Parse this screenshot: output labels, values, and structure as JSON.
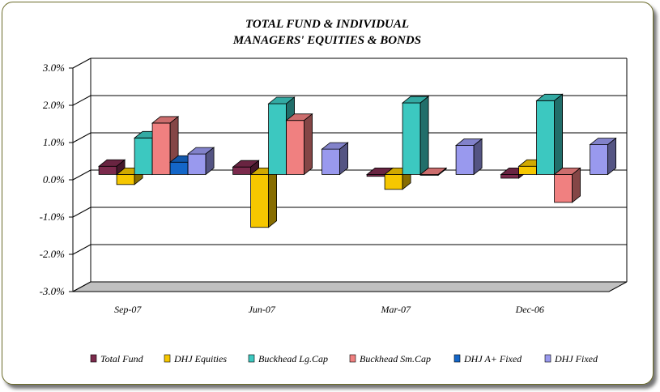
{
  "chart_data": {
    "type": "bar",
    "title_lines": [
      "TOTAL FUND  & INDIVIDUAL",
      "MANAGERS' EQUITIES & BONDS"
    ],
    "categories": [
      "Sep-07",
      "Jun-07",
      "Mar-07",
      "Dec-06"
    ],
    "ylim": [
      -3.0,
      3.0
    ],
    "yticks": [
      -3.0,
      -2.0,
      -1.0,
      0.0,
      1.0,
      2.0,
      3.0
    ],
    "ytick_labels": [
      "-3.0%",
      "-2.0%",
      "-1.0%",
      "0.0%",
      "1.0%",
      "2.0%",
      "3.0%"
    ],
    "grid": true,
    "legend_position": "bottom",
    "series": [
      {
        "name": "Total Fund",
        "color": "#7b2a4c",
        "values": [
          0.22,
          0.2,
          -0.05,
          -0.1
        ]
      },
      {
        "name": "DHJ Equities",
        "color": "#f6c700",
        "values": [
          -0.27,
          -1.42,
          -0.4,
          0.22
        ]
      },
      {
        "name": "Buckhead Lg.Cap",
        "color": "#3cc8c0",
        "values": [
          0.98,
          1.9,
          1.92,
          1.98
        ]
      },
      {
        "name": "Buckhead Sm.Cap",
        "color": "#f08080",
        "values": [
          1.38,
          1.45,
          0.0,
          -0.75
        ]
      },
      {
        "name": "DHJ A+ Fixed",
        "color": "#1466c8",
        "values": [
          0.33,
          null,
          null,
          null
        ]
      },
      {
        "name": "DHJ Fixed",
        "color": "#9999ee",
        "values": [
          0.55,
          0.68,
          0.78,
          0.8
        ]
      }
    ]
  }
}
